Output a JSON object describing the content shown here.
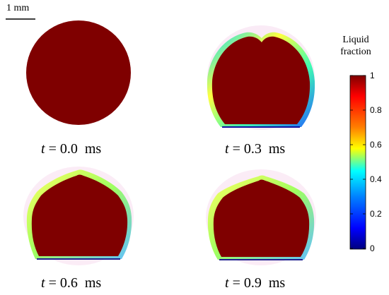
{
  "scale_bar": {
    "label": "1 mm"
  },
  "panels": [
    {
      "time_var": "t",
      "eq": " = ",
      "value": "0.0",
      "unit": "ms",
      "shape": "circle"
    },
    {
      "time_var": "t",
      "eq": " = ",
      "value": "0.3",
      "unit": "ms",
      "shape": "flattened-drop"
    },
    {
      "time_var": "t",
      "eq": " = ",
      "value": "0.6",
      "unit": "ms",
      "shape": "peaked-drop"
    },
    {
      "time_var": "t",
      "eq": " = ",
      "value": "0.9",
      "unit": "ms",
      "shape": "peaked-drop"
    }
  ],
  "colorbar": {
    "title_line1": "Liquid",
    "title_line2": "fraction",
    "ticks": [
      "1",
      "0.8",
      "0.6",
      "0.4",
      "0.2",
      "0"
    ],
    "colors": [
      "#7f0000",
      "#ff0000",
      "#ff8000",
      "#ffff00",
      "#00ffff",
      "#0080ff",
      "#0000ff",
      "#00007f"
    ]
  },
  "colors": {
    "liquid": "#7f0000",
    "background": "#ffffff"
  }
}
